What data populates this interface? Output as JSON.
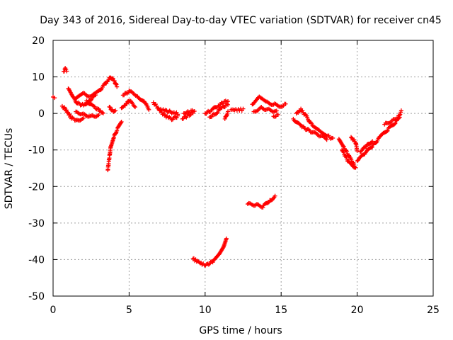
{
  "chart_data": {
    "type": "scatter",
    "title": "Day 343 of 2016, Sidereal Day-to-day VTEC variation (SDTVAR) for receiver cn45",
    "xlabel": "GPS time / hours",
    "ylabel": "SDTVAR / TECUs",
    "xlim": [
      0,
      25
    ],
    "ylim": [
      -50,
      20
    ],
    "xticks": [
      0,
      5,
      10,
      15,
      20,
      25
    ],
    "yticks": [
      -50,
      -40,
      -30,
      -20,
      -10,
      0,
      10,
      20
    ],
    "grid": true,
    "marker": "+",
    "series_color": "#ff0000",
    "segments": [
      [
        [
          0,
          4.5
        ],
        [
          0.1,
          4.5
        ]
      ],
      [
        [
          0.7,
          11.5
        ],
        [
          0.8,
          12.2
        ],
        [
          0.9,
          11.8
        ]
      ],
      [
        [
          0.6,
          2.0
        ],
        [
          0.8,
          1.2
        ],
        [
          1.0,
          0.0
        ],
        [
          1.2,
          -1.2
        ],
        [
          1.5,
          -1.8
        ],
        [
          2.0,
          -1.5
        ]
      ],
      [
        [
          1.0,
          6.8
        ],
        [
          1.3,
          4.5
        ],
        [
          1.6,
          2.8
        ],
        [
          2.0,
          2.2
        ],
        [
          2.4,
          3.5
        ],
        [
          2.8,
          5.0
        ]
      ],
      [
        [
          1.5,
          0.5
        ],
        [
          2.0,
          -0.3
        ],
        [
          2.5,
          -0.8
        ],
        [
          3.0,
          -0.5
        ]
      ],
      [
        [
          1.5,
          4.0
        ],
        [
          2.0,
          5.5
        ],
        [
          2.5,
          4.5
        ],
        [
          3.0,
          6.0
        ],
        [
          3.5,
          8.5
        ],
        [
          3.8,
          10.0
        ],
        [
          4.0,
          9.0
        ],
        [
          4.2,
          7.5
        ]
      ],
      [
        [
          2.2,
          3.5
        ],
        [
          2.6,
          2.0
        ],
        [
          3.0,
          1.0
        ],
        [
          3.3,
          0.0
        ]
      ],
      [
        [
          3.7,
          1.8
        ],
        [
          3.9,
          0.8
        ],
        [
          4.1,
          0.5
        ]
      ],
      [
        [
          3.6,
          -15.5
        ],
        [
          3.7,
          -12.0
        ],
        [
          3.8,
          -9.0
        ],
        [
          4.0,
          -6.5
        ],
        [
          4.2,
          -4.5
        ],
        [
          4.5,
          -2.5
        ]
      ],
      [
        [
          4.5,
          1.5
        ],
        [
          4.8,
          2.5
        ],
        [
          5.0,
          3.5
        ],
        [
          5.4,
          2.0
        ]
      ],
      [
        [
          4.6,
          5.0
        ],
        [
          5.0,
          6.0
        ],
        [
          5.5,
          5.0
        ],
        [
          6.0,
          3.0
        ],
        [
          6.3,
          1.3
        ]
      ],
      [
        [
          6.6,
          3.0
        ],
        [
          6.9,
          1.5
        ],
        [
          7.2,
          0.0
        ],
        [
          7.5,
          -1.0
        ],
        [
          7.8,
          -1.5
        ],
        [
          8.2,
          -0.8
        ]
      ],
      [
        [
          7.0,
          1.0
        ],
        [
          7.4,
          0.8
        ],
        [
          7.8,
          0.3
        ],
        [
          8.2,
          0.0
        ]
      ],
      [
        [
          8.5,
          -1.5
        ],
        [
          8.9,
          -0.5
        ],
        [
          9.2,
          0.0
        ]
      ],
      [
        [
          8.6,
          0.0
        ],
        [
          9.0,
          0.5
        ],
        [
          9.3,
          0.8
        ]
      ],
      [
        [
          9.2,
          -39.8
        ],
        [
          9.5,
          -40.5
        ],
        [
          9.8,
          -41.2
        ],
        [
          10.1,
          -41.5
        ],
        [
          10.5,
          -40.5
        ],
        [
          10.9,
          -38.5
        ],
        [
          11.2,
          -36.5
        ],
        [
          11.4,
          -34.0
        ]
      ],
      [
        [
          10.0,
          0.0
        ],
        [
          10.4,
          0.8
        ],
        [
          10.8,
          2.0
        ],
        [
          11.2,
          3.0
        ],
        [
          11.5,
          3.5
        ]
      ],
      [
        [
          10.3,
          -1.0
        ],
        [
          10.7,
          0.0
        ],
        [
          11.1,
          1.5
        ],
        [
          11.5,
          2.5
        ]
      ],
      [
        [
          11.3,
          -1.5
        ],
        [
          11.5,
          0.5
        ]
      ],
      [
        [
          11.7,
          1.0
        ],
        [
          12.1,
          1.0
        ],
        [
          12.5,
          1.0
        ]
      ],
      [
        [
          12.8,
          -24.8
        ],
        [
          13.3,
          -25.0
        ],
        [
          13.8,
          -25.5
        ],
        [
          14.2,
          -24.0
        ],
        [
          14.6,
          -22.8
        ]
      ],
      [
        [
          13.1,
          2.5
        ],
        [
          13.5,
          4.5
        ],
        [
          14.0,
          3.0
        ],
        [
          14.5,
          2.5
        ],
        [
          15.0,
          2.0
        ],
        [
          15.3,
          2.5
        ]
      ],
      [
        [
          13.2,
          0.5
        ],
        [
          13.7,
          1.5
        ],
        [
          14.2,
          1.0
        ],
        [
          14.7,
          0.5
        ]
      ],
      [
        [
          14.5,
          -0.8
        ],
        [
          14.8,
          -0.5
        ]
      ],
      [
        [
          16.0,
          0.0
        ],
        [
          16.3,
          1.0
        ],
        [
          16.6,
          -0.5
        ],
        [
          17.0,
          -3.0
        ],
        [
          17.5,
          -4.5
        ],
        [
          18.0,
          -6.0
        ],
        [
          18.4,
          -7.0
        ]
      ],
      [
        [
          15.8,
          -1.5
        ],
        [
          16.3,
          -3.5
        ],
        [
          17.0,
          -5.0
        ],
        [
          17.5,
          -6.0
        ],
        [
          18.0,
          -7.0
        ]
      ],
      [
        [
          18.8,
          -7.0
        ],
        [
          19.1,
          -9.0
        ],
        [
          19.5,
          -12.0
        ],
        [
          19.9,
          -14.8
        ]
      ],
      [
        [
          19.0,
          -10.0
        ],
        [
          19.4,
          -13.0
        ],
        [
          19.8,
          -15.0
        ]
      ],
      [
        [
          19.6,
          -6.5
        ],
        [
          19.9,
          -8.0
        ],
        [
          20.0,
          -10.0
        ]
      ],
      [
        [
          20.0,
          -13.0
        ],
        [
          20.5,
          -11.0
        ],
        [
          21.0,
          -9.0
        ],
        [
          21.5,
          -6.5
        ],
        [
          22.0,
          -4.5
        ],
        [
          22.5,
          -2.5
        ],
        [
          22.9,
          0.5
        ]
      ],
      [
        [
          20.2,
          -10.5
        ],
        [
          20.6,
          -9.0
        ],
        [
          21.0,
          -7.5
        ]
      ],
      [
        [
          21.8,
          -3.0
        ],
        [
          22.3,
          -2.0
        ],
        [
          22.8,
          -1.0
        ]
      ]
    ]
  }
}
